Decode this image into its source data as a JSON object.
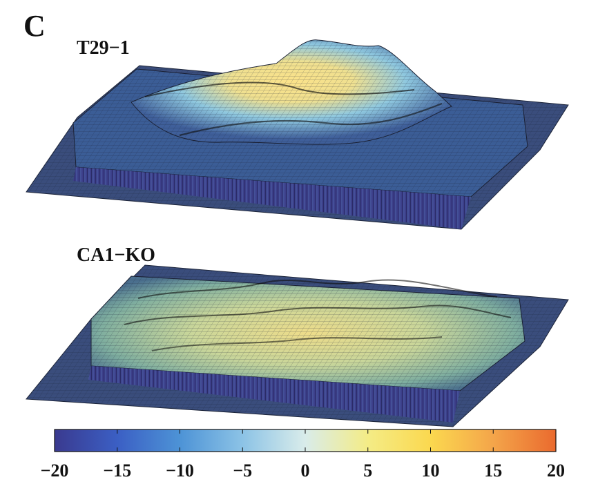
{
  "figure": {
    "panel_letter": "C"
  },
  "chart_data": [
    {
      "type": "surface",
      "title": "T29−1",
      "z_shape": "single large central peak",
      "colormap_range": [
        -20,
        20
      ]
    },
    {
      "type": "surface",
      "title": "CA1−KO",
      "z_shape": "multiple small peaks, flatter field",
      "colormap_range": [
        -20,
        20
      ]
    },
    {
      "type": "colorbar",
      "vmin": -20,
      "vmax": 20,
      "ticks": [
        -20,
        -15,
        -10,
        -5,
        0,
        5,
        10,
        15,
        20
      ],
      "tick_labels": [
        "−20",
        "−15",
        "−10",
        "−5",
        "0",
        "5",
        "10",
        "15",
        "20"
      ],
      "colors": [
        "#3a3a8f",
        "#3b5fc4",
        "#4d93d6",
        "#8cc3e6",
        "#d9ecea",
        "#f4ec86",
        "#fbd84f",
        "#f4a54a",
        "#ea6a2e"
      ]
    }
  ]
}
